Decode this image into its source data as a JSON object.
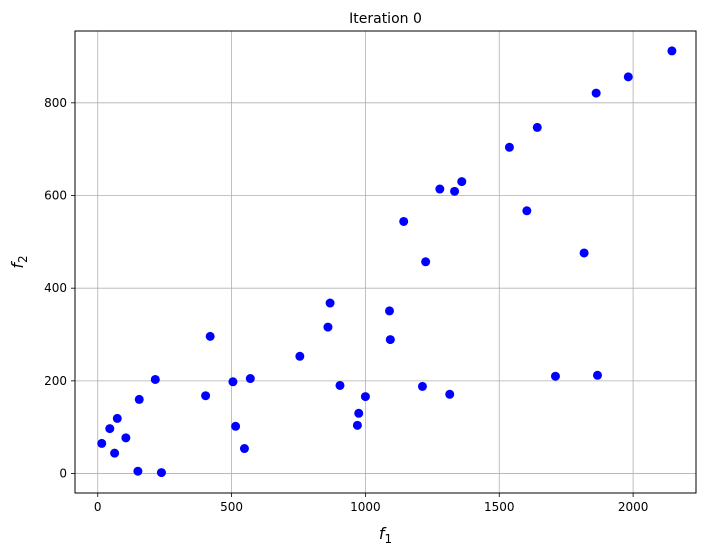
{
  "chart_data": {
    "type": "scatter",
    "title": "Iteration 0",
    "xlabel": {
      "main": "f",
      "sub": "1"
    },
    "ylabel": {
      "main": "f",
      "sub": "2"
    },
    "xlim": [
      -85,
      2235
    ],
    "ylim": [
      -42,
      955
    ],
    "xticks": [
      0,
      500,
      1000,
      1500,
      2000
    ],
    "yticks": [
      0,
      200,
      400,
      600,
      800
    ],
    "grid": true,
    "marker_color": "#0000ff",
    "grid_color": "#b0b0b0",
    "series": [
      {
        "points": [
          {
            "x": 15,
            "y": 65
          },
          {
            "x": 45,
            "y": 97
          },
          {
            "x": 63,
            "y": 44
          },
          {
            "x": 73,
            "y": 119
          },
          {
            "x": 105,
            "y": 77
          },
          {
            "x": 150,
            "y": 5
          },
          {
            "x": 155,
            "y": 160
          },
          {
            "x": 215,
            "y": 203
          },
          {
            "x": 238,
            "y": 2
          },
          {
            "x": 403,
            "y": 168
          },
          {
            "x": 420,
            "y": 296
          },
          {
            "x": 505,
            "y": 198
          },
          {
            "x": 515,
            "y": 102
          },
          {
            "x": 548,
            "y": 54
          },
          {
            "x": 570,
            "y": 205
          },
          {
            "x": 755,
            "y": 253
          },
          {
            "x": 860,
            "y": 316
          },
          {
            "x": 868,
            "y": 368
          },
          {
            "x": 905,
            "y": 190
          },
          {
            "x": 970,
            "y": 104
          },
          {
            "x": 975,
            "y": 130
          },
          {
            "x": 1000,
            "y": 166
          },
          {
            "x": 1090,
            "y": 351
          },
          {
            "x": 1093,
            "y": 289
          },
          {
            "x": 1143,
            "y": 544
          },
          {
            "x": 1213,
            "y": 188
          },
          {
            "x": 1225,
            "y": 457
          },
          {
            "x": 1278,
            "y": 614
          },
          {
            "x": 1315,
            "y": 171
          },
          {
            "x": 1333,
            "y": 609
          },
          {
            "x": 1360,
            "y": 630
          },
          {
            "x": 1538,
            "y": 704
          },
          {
            "x": 1603,
            "y": 567
          },
          {
            "x": 1642,
            "y": 747
          },
          {
            "x": 1710,
            "y": 210
          },
          {
            "x": 1817,
            "y": 476
          },
          {
            "x": 1862,
            "y": 821
          },
          {
            "x": 1867,
            "y": 212
          },
          {
            "x": 1982,
            "y": 856
          },
          {
            "x": 2145,
            "y": 912
          }
        ]
      }
    ]
  }
}
